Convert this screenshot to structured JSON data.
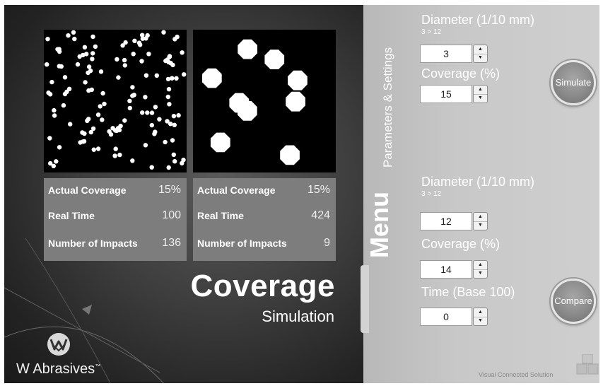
{
  "simulation_1": {
    "stats": [
      {
        "label": "Actual Coverage",
        "value": "15%"
      },
      {
        "label": "Real Time",
        "value": "100"
      },
      {
        "label": "Number of Impacts",
        "value": "136"
      }
    ]
  },
  "simulation_2": {
    "stats": [
      {
        "label": "Actual Coverage",
        "value": "15%"
      },
      {
        "label": "Real Time",
        "value": "424"
      },
      {
        "label": "Number of Impacts",
        "value": "9"
      }
    ]
  },
  "title": {
    "main": "Coverage",
    "sub": "Simulation"
  },
  "brand": {
    "name": "W Abrasives",
    "mark": "™",
    "logo_icon": "w-abrasives-logo-icon"
  },
  "menu": {
    "title": "Menu",
    "subtitle": "Parameters & Settings"
  },
  "form_1": {
    "diameter_label": "Diameter (1/10 mm)",
    "diameter_range": "3 > 12",
    "diameter_value": "3",
    "coverage_label": "Coverage (%)",
    "coverage_value": "15",
    "button_label": "Simulate"
  },
  "form_2": {
    "diameter_label": "Diameter (1/10 mm)",
    "diameter_range": "3 > 12",
    "diameter_value": "12",
    "coverage_label": "Coverage (%)",
    "coverage_value": "14",
    "time_label": "Time (Base 100)",
    "time_value": "0",
    "button_label": "Compare"
  },
  "footer": {
    "label": "Visual Connected Solution",
    "icon": "cubes-icon"
  },
  "colors": {
    "canvas_bg": "#000000",
    "impact": "#ffffff",
    "stats_bg": "#7d7d7d",
    "right_panel": "#c8c8c8"
  }
}
